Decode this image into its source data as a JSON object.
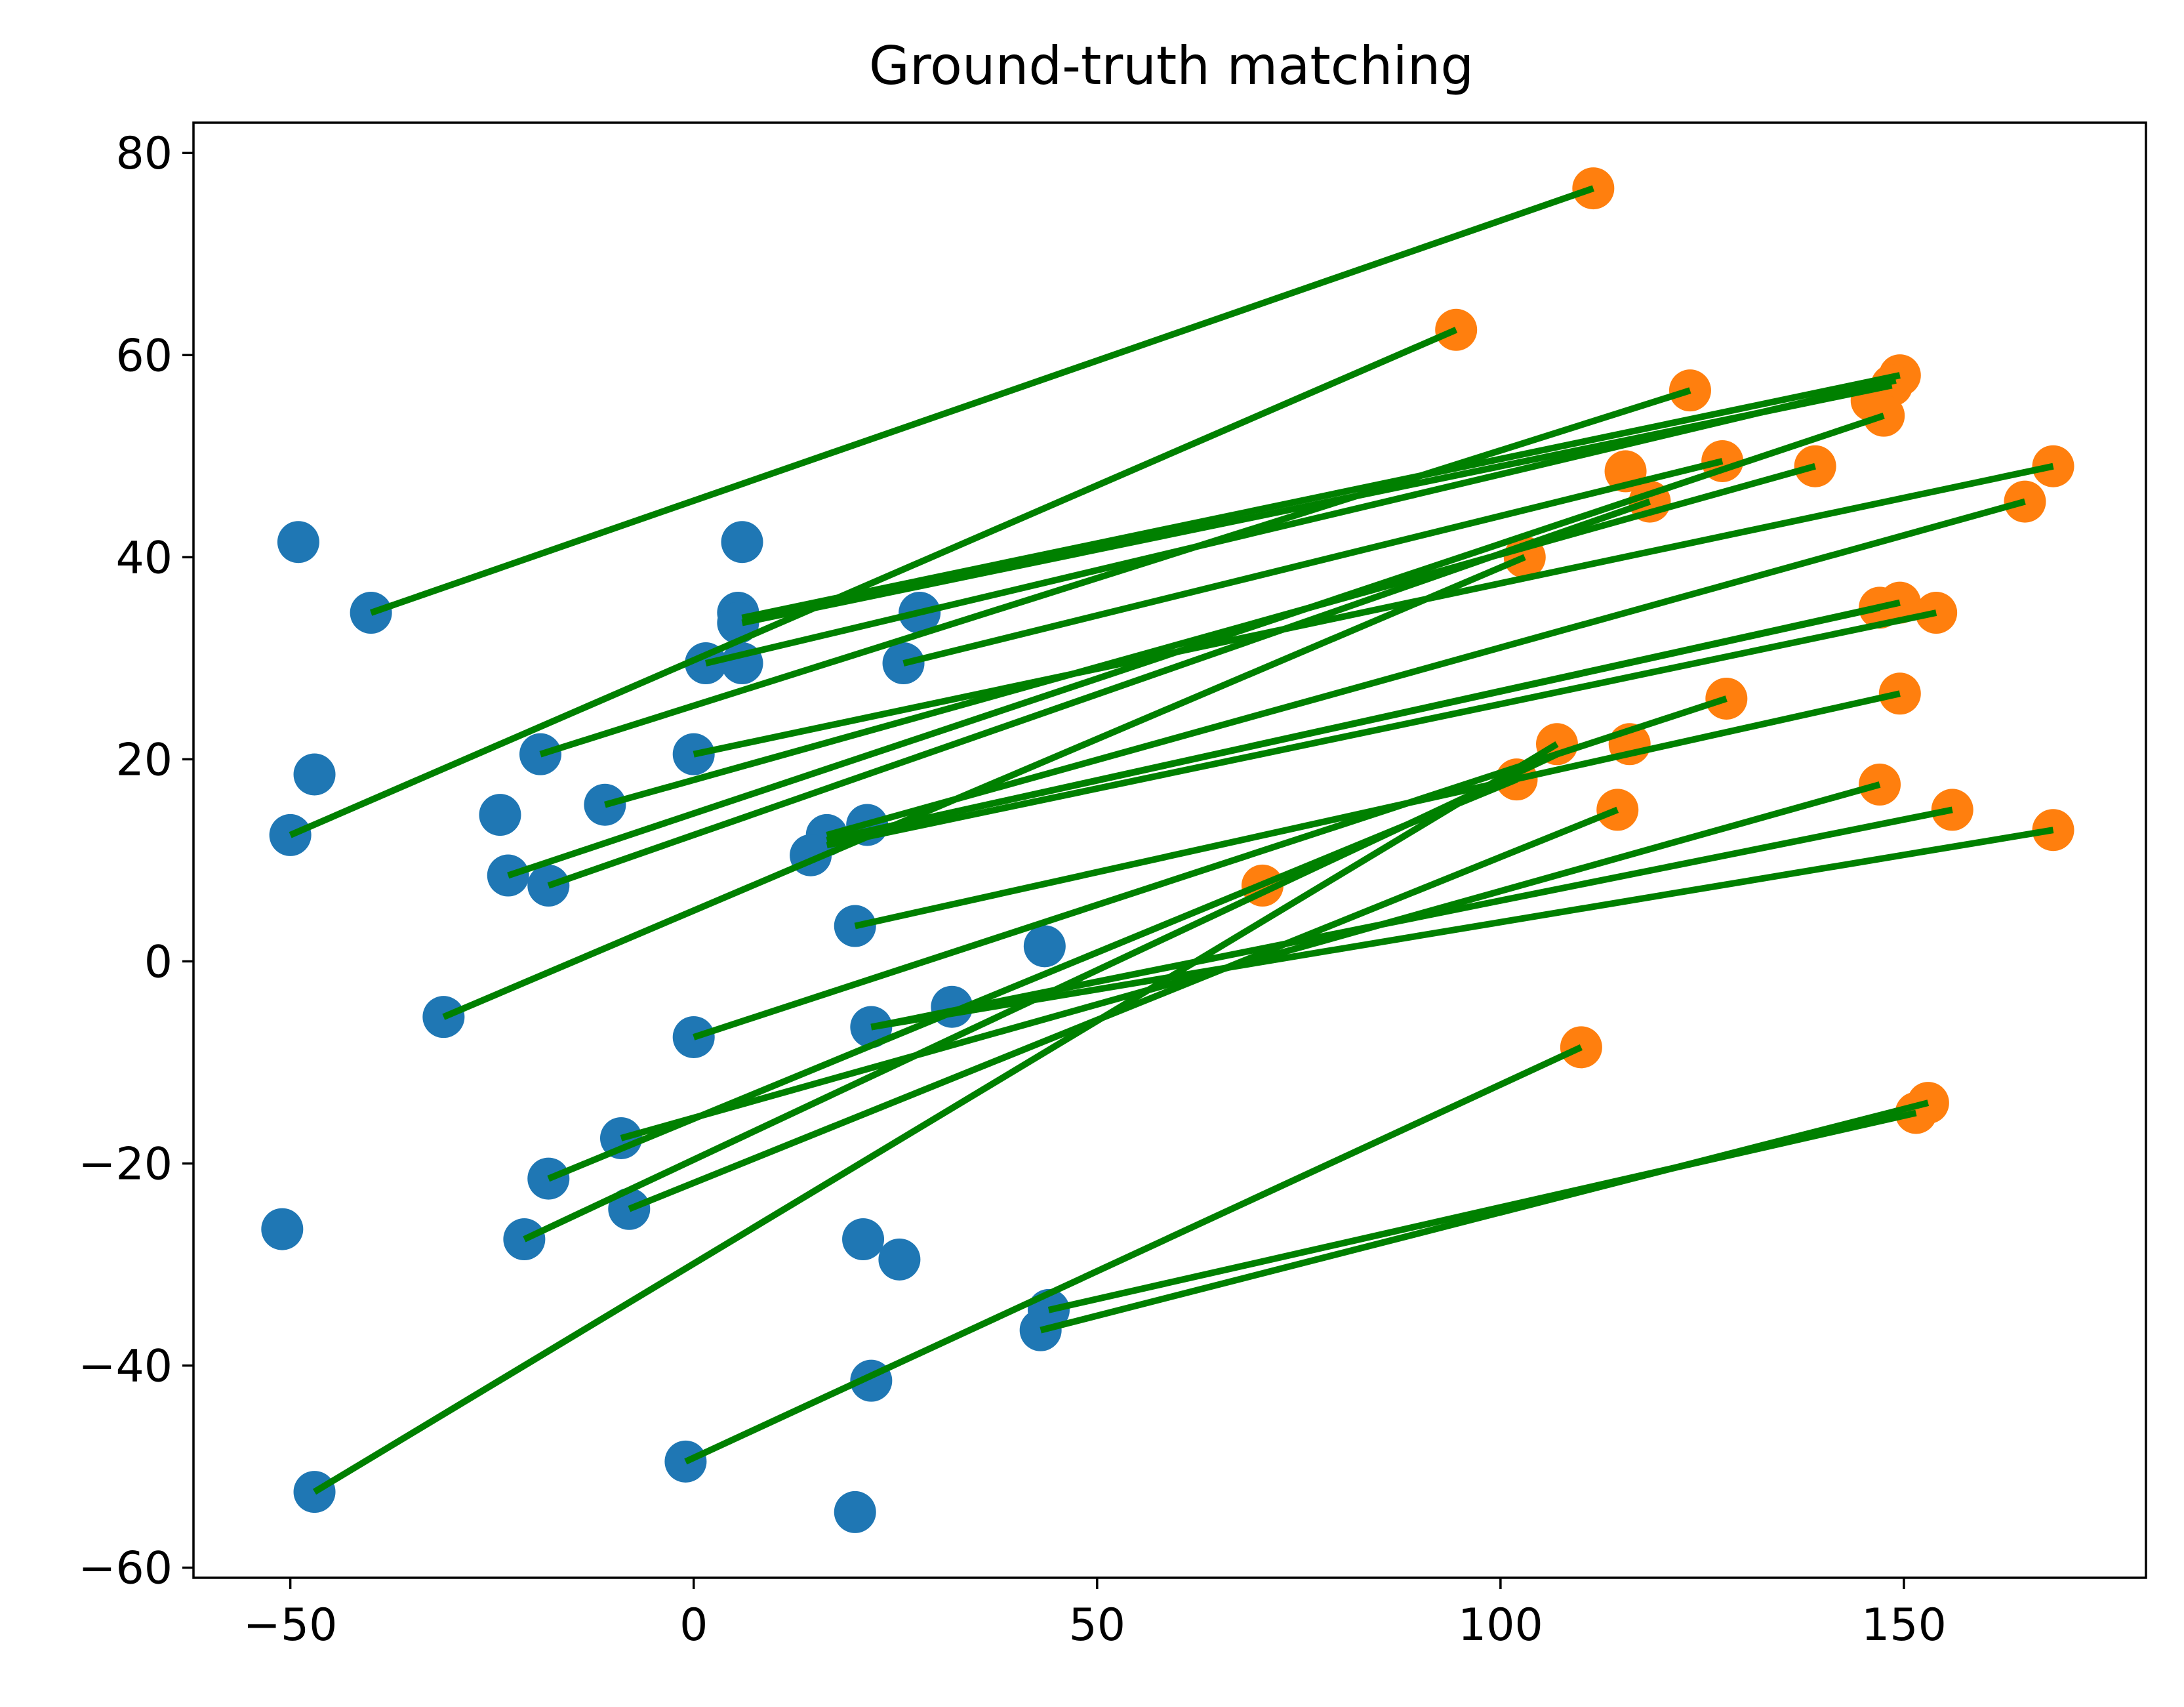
{
  "chart_data": {
    "type": "scatter",
    "title": "Ground-truth matching",
    "xlabel": "",
    "ylabel": "",
    "xlim": [
      -62,
      180
    ],
    "ylim": [
      -61,
      83
    ],
    "xticks": [
      -50,
      0,
      50,
      100,
      150
    ],
    "yticks": [
      -60,
      -40,
      -20,
      0,
      20,
      40,
      60,
      80
    ],
    "grid": false,
    "legend": "none",
    "colors": {
      "source": "#1f77b4",
      "target": "#ff7f0e",
      "match": "#008000"
    },
    "series": [
      {
        "values": [
          {
            "x": -49,
            "y": 41.5
          },
          {
            "x": -40,
            "y": 34.5
          },
          {
            "x": -47,
            "y": 18.5
          },
          {
            "x": -50,
            "y": 12.5
          },
          {
            "x": -24,
            "y": 14.5
          },
          {
            "x": -23,
            "y": 8.5
          },
          {
            "x": -18,
            "y": 7.5
          },
          {
            "x": -19,
            "y": 20.5
          },
          {
            "x": -11,
            "y": 15.5
          },
          {
            "x": -31,
            "y": -5.5
          },
          {
            "x": -51,
            "y": -26.5
          },
          {
            "x": -47,
            "y": -52.5
          },
          {
            "x": 6,
            "y": 41.5
          },
          {
            "x": 5.5,
            "y": 34.5
          },
          {
            "x": 5.5,
            "y": 33.5
          },
          {
            "x": 1.5,
            "y": 29.5
          },
          {
            "x": 6,
            "y": 29.5
          },
          {
            "x": 28,
            "y": 34.5
          },
          {
            "x": 26,
            "y": 29.5
          },
          {
            "x": 0,
            "y": 20.5
          },
          {
            "x": 16.5,
            "y": 12.5
          },
          {
            "x": 21.5,
            "y": 13.5
          },
          {
            "x": 14.5,
            "y": 10.5
          },
          {
            "x": 20,
            "y": 3.5
          },
          {
            "x": 43.5,
            "y": 1.5
          },
          {
            "x": 22,
            "y": -6.5
          },
          {
            "x": 32,
            "y": -4.5
          },
          {
            "x": 0,
            "y": -7.5
          },
          {
            "x": -9,
            "y": -17.5
          },
          {
            "x": -18,
            "y": -21.5
          },
          {
            "x": -8,
            "y": -24.5
          },
          {
            "x": -21,
            "y": -27.5
          },
          {
            "x": 21,
            "y": -27.5
          },
          {
            "x": 25.5,
            "y": -29.5
          },
          {
            "x": 44,
            "y": -34.5
          },
          {
            "x": 43,
            "y": -36.5
          },
          {
            "x": 22,
            "y": -41.5
          },
          {
            "x": -1,
            "y": -49.5
          },
          {
            "x": 20,
            "y": -54.5
          }
        ]
      },
      {
        "values": [
          {
            "x": 111.5,
            "y": 76.5
          },
          {
            "x": 94.5,
            "y": 62.5
          },
          {
            "x": 149.5,
            "y": 58
          },
          {
            "x": 148.5,
            "y": 57
          },
          {
            "x": 123.5,
            "y": 56.5
          },
          {
            "x": 146,
            "y": 55.5
          },
          {
            "x": 147.5,
            "y": 54
          },
          {
            "x": 168.5,
            "y": 49
          },
          {
            "x": 127.5,
            "y": 49.5
          },
          {
            "x": 139,
            "y": 49
          },
          {
            "x": 115.5,
            "y": 48.5
          },
          {
            "x": 118.5,
            "y": 45.5
          },
          {
            "x": 165,
            "y": 45.5
          },
          {
            "x": 103,
            "y": 40
          },
          {
            "x": 149.5,
            "y": 35.5
          },
          {
            "x": 147,
            "y": 35
          },
          {
            "x": 154,
            "y": 34.5
          },
          {
            "x": 149.5,
            "y": 26.5
          },
          {
            "x": 128,
            "y": 26
          },
          {
            "x": 107,
            "y": 21.5
          },
          {
            "x": 116,
            "y": 21.5
          },
          {
            "x": 102,
            "y": 18
          },
          {
            "x": 147,
            "y": 17.5
          },
          {
            "x": 156,
            "y": 15
          },
          {
            "x": 114.5,
            "y": 15
          },
          {
            "x": 168.5,
            "y": 13
          },
          {
            "x": 70.5,
            "y": 7.5
          },
          {
            "x": 110,
            "y": -8.5
          },
          {
            "x": 153,
            "y": -14
          },
          {
            "x": 151.5,
            "y": -15
          }
        ]
      }
    ],
    "matches": [
      {
        "from": [
          -40,
          34.5
        ],
        "to": [
          111.5,
          76.5
        ]
      },
      {
        "from": [
          -50,
          12.5
        ],
        "to": [
          94.5,
          62.5
        ]
      },
      {
        "from": [
          6,
          34
        ],
        "to": [
          149.5,
          58
        ]
      },
      {
        "from": [
          6,
          33.5
        ],
        "to": [
          148.5,
          57
        ]
      },
      {
        "from": [
          1.5,
          29.5
        ],
        "to": [
          149,
          57.5
        ]
      },
      {
        "from": [
          -19,
          20.5
        ],
        "to": [
          123.5,
          56.5
        ]
      },
      {
        "from": [
          -23,
          8.5
        ],
        "to": [
          147.5,
          54
        ]
      },
      {
        "from": [
          26,
          29.5
        ],
        "to": [
          127.5,
          49.5
        ]
      },
      {
        "from": [
          -11,
          15.5
        ],
        "to": [
          139,
          49
        ]
      },
      {
        "from": [
          -18,
          7.5
        ],
        "to": [
          118.5,
          45.5
        ]
      },
      {
        "from": [
          0,
          20.5
        ],
        "to": [
          168.5,
          49
        ]
      },
      {
        "from": [
          16.5,
          12.5
        ],
        "to": [
          165,
          45.5
        ]
      },
      {
        "from": [
          -31,
          -5.5
        ],
        "to": [
          103,
          40
        ]
      },
      {
        "from": [
          16.5,
          12
        ],
        "to": [
          149.5,
          35.5
        ]
      },
      {
        "from": [
          16.5,
          12
        ],
        "to": [
          147,
          35
        ]
      },
      {
        "from": [
          16.5,
          11.5
        ],
        "to": [
          154,
          34.5
        ]
      },
      {
        "from": [
          20,
          3.5
        ],
        "to": [
          149.5,
          26.5
        ]
      },
      {
        "from": [
          0,
          -7.5
        ],
        "to": [
          128,
          26
        ]
      },
      {
        "from": [
          -47,
          -52.5
        ],
        "to": [
          107,
          21.5
        ]
      },
      {
        "from": [
          -18,
          -21.5
        ],
        "to": [
          102,
          18
        ]
      },
      {
        "from": [
          -9,
          -17.5
        ],
        "to": [
          147,
          17.5
        ]
      },
      {
        "from": [
          -8,
          -24.5
        ],
        "to": [
          114.5,
          15
        ]
      },
      {
        "from": [
          -21,
          -27.5
        ],
        "to": [
          107,
          20.5
        ]
      },
      {
        "from": [
          22,
          -6.5
        ],
        "to": [
          156,
          15
        ]
      },
      {
        "from": [
          22,
          -6.5
        ],
        "to": [
          168.5,
          13
        ]
      },
      {
        "from": [
          -1,
          -49.5
        ],
        "to": [
          110,
          -8.5
        ]
      },
      {
        "from": [
          43,
          -36.5
        ],
        "to": [
          153,
          -14
        ]
      },
      {
        "from": [
          44,
          -34.5
        ],
        "to": [
          151.5,
          -15
        ]
      }
    ]
  }
}
